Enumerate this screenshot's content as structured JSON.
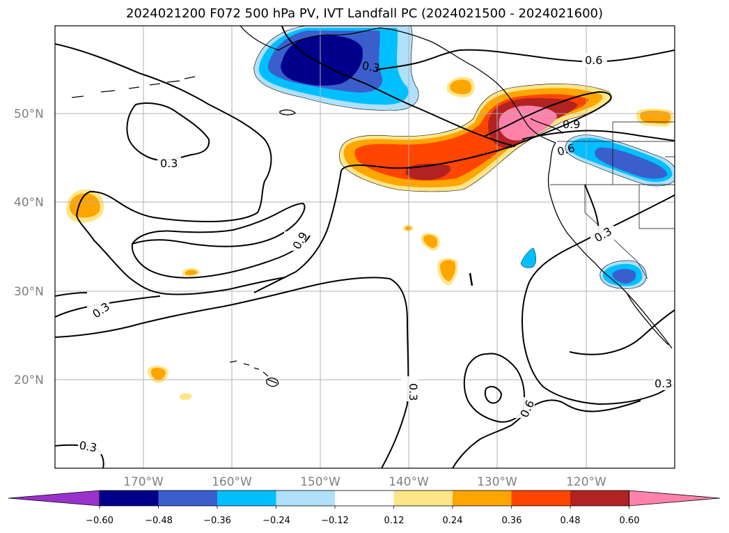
{
  "title": "2024021200 F072 500 hPa PV, IVT Landfall PC (2024021500 - 2024021600)",
  "map": {
    "lon_ticks": [
      "170°W",
      "160°W",
      "150°W",
      "140°W",
      "130°W",
      "120°W"
    ],
    "lat_ticks": [
      "50°N",
      "40°N",
      "30°N",
      "20°N"
    ],
    "contour_labels": [
      "0.3",
      "0.6",
      "0.9",
      "0.3",
      "0.3",
      "0.6",
      "0.3",
      "0.6",
      "0.3",
      "0.3",
      "0.3",
      "0.6",
      "0.9",
      "0.6"
    ],
    "gridlines": true
  },
  "colorbar": {
    "ticks": [
      "−0.60",
      "−0.48",
      "−0.36",
      "−0.24",
      "−0.12",
      "0.12",
      "0.24",
      "0.36",
      "0.48",
      "0.60"
    ],
    "colors": [
      "#9932cc",
      "#00008b",
      "#3a5fcd",
      "#00bfff",
      "#b0e0fa",
      "#ffffff",
      "#fde68a",
      "#ffa500",
      "#ff4500",
      "#b22222",
      "#ff82ab"
    ]
  },
  "colors": {
    "strong_neg": "#00008b",
    "mid_neg": "#3a5fcd",
    "light_neg": "#00bfff",
    "pale_neg": "#b0e0fa",
    "pale_pos": "#fde68a",
    "orange": "#ffa500",
    "red_orange": "#ff4500",
    "dark_red": "#b22222",
    "pink": "#ff82ab"
  }
}
